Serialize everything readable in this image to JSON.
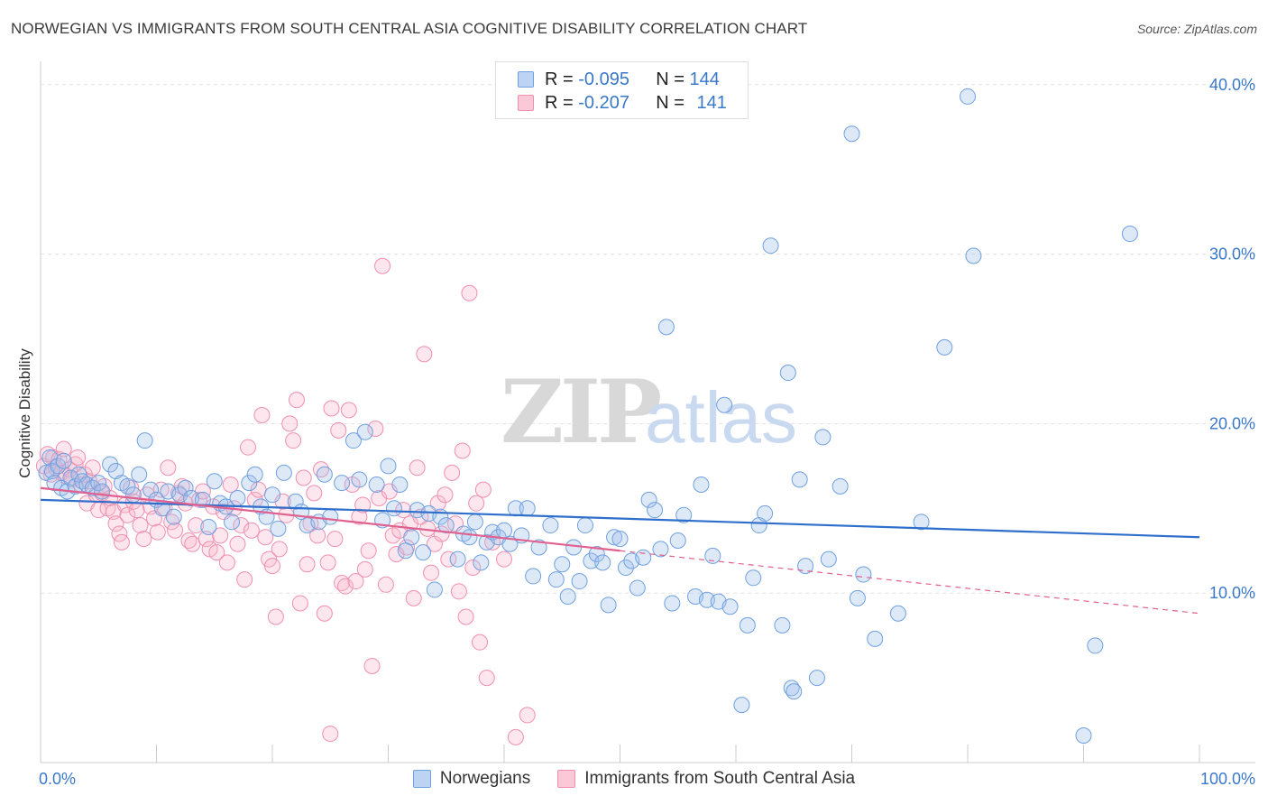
{
  "title": "NORWEGIAN VS IMMIGRANTS FROM SOUTH CENTRAL ASIA COGNITIVE DISABILITY CORRELATION CHART",
  "source": "Source: ZipAtlas.com",
  "watermark": {
    "zip": "ZIP",
    "atlas": "atlas"
  },
  "legend": {
    "rows": [
      {
        "r_label": "R =",
        "r_value": "-0.095",
        "n_label": "N =",
        "n_value": "144",
        "color": "#6fa0e0"
      },
      {
        "r_label": "R =",
        "r_value": "-0.207",
        "n_label": "N =",
        "n_value": "141",
        "color": "#f08fb0"
      }
    ]
  },
  "bottom_legend": [
    "Norwegians",
    "Immigrants from South Central Asia"
  ],
  "chart_data": {
    "type": "scatter",
    "title": "NORWEGIAN VS IMMIGRANTS FROM SOUTH CENTRAL ASIA COGNITIVE DISABILITY CORRELATION CHART",
    "ylabel": "Cognitive Disability",
    "xlabel": "",
    "xlim": [
      0,
      100
    ],
    "ylim": [
      0,
      41
    ],
    "x_tick_labels": [
      "0.0%",
      "100.0%"
    ],
    "y_ticks": [
      10,
      20,
      30,
      40
    ],
    "y_tick_labels": [
      "10.0%",
      "20.0%",
      "30.0%",
      "40.0%"
    ],
    "grid": true,
    "legend_position": "top-center",
    "colors": {
      "norwegians": "#6fa0e0",
      "immigrants": "#f08fb0",
      "norwegians_line": "#2f6fcc",
      "immigrants_line": "#e0608f"
    },
    "series": [
      {
        "name": "Norwegians",
        "r": -0.095,
        "n": 144,
        "trend": {
          "x": [
            0,
            100
          ],
          "y": [
            15.5,
            13.3
          ]
        },
        "points": [
          [
            0.5,
            17.1
          ],
          [
            0.8,
            18.0
          ],
          [
            1.0,
            17.2
          ],
          [
            1.2,
            16.5
          ],
          [
            1.5,
            17.5
          ],
          [
            1.8,
            16.2
          ],
          [
            2.0,
            17.8
          ],
          [
            2.3,
            16.0
          ],
          [
            2.6,
            16.8
          ],
          [
            3.0,
            16.3
          ],
          [
            3.3,
            17.0
          ],
          [
            3.6,
            16.6
          ],
          [
            4.0,
            16.4
          ],
          [
            4.5,
            16.2
          ],
          [
            5.0,
            16.5
          ],
          [
            5.3,
            16.0
          ],
          [
            6.0,
            17.6
          ],
          [
            6.5,
            17.2
          ],
          [
            7.0,
            16.5
          ],
          [
            7.5,
            16.3
          ],
          [
            8.0,
            15.8
          ],
          [
            8.5,
            17.0
          ],
          [
            9.0,
            19.0
          ],
          [
            9.5,
            16.1
          ],
          [
            10.0,
            15.5
          ],
          [
            10.5,
            15.0
          ],
          [
            11.0,
            16.0
          ],
          [
            11.5,
            14.5
          ],
          [
            12.0,
            15.8
          ],
          [
            12.5,
            16.2
          ],
          [
            13.0,
            15.6
          ],
          [
            14.0,
            15.5
          ],
          [
            14.5,
            13.9
          ],
          [
            15.0,
            16.6
          ],
          [
            15.5,
            15.3
          ],
          [
            16.0,
            15.1
          ],
          [
            16.5,
            14.2
          ],
          [
            17.0,
            15.6
          ],
          [
            18.0,
            16.5
          ],
          [
            18.5,
            17.0
          ],
          [
            19.0,
            15.1
          ],
          [
            19.5,
            14.5
          ],
          [
            20.0,
            15.8
          ],
          [
            20.5,
            13.8
          ],
          [
            21.0,
            17.1
          ],
          [
            22.0,
            15.4
          ],
          [
            22.5,
            14.8
          ],
          [
            23.0,
            14.0
          ],
          [
            24.0,
            14.2
          ],
          [
            24.5,
            17.0
          ],
          [
            25.0,
            14.5
          ],
          [
            26.0,
            16.5
          ],
          [
            27.0,
            19.0
          ],
          [
            27.5,
            16.7
          ],
          [
            28.0,
            19.5
          ],
          [
            29.0,
            16.4
          ],
          [
            29.5,
            14.3
          ],
          [
            30.0,
            17.5
          ],
          [
            30.5,
            15.0
          ],
          [
            31.0,
            16.4
          ],
          [
            31.5,
            12.5
          ],
          [
            32.0,
            13.3
          ],
          [
            32.5,
            14.9
          ],
          [
            33.0,
            12.4
          ],
          [
            33.5,
            14.7
          ],
          [
            34.0,
            10.2
          ],
          [
            34.5,
            14.5
          ],
          [
            35.0,
            14.0
          ],
          [
            36.0,
            12.0
          ],
          [
            36.5,
            13.5
          ],
          [
            37.0,
            13.3
          ],
          [
            37.5,
            14.2
          ],
          [
            38.0,
            11.8
          ],
          [
            38.5,
            13.0
          ],
          [
            39.0,
            13.6
          ],
          [
            39.5,
            13.3
          ],
          [
            40.0,
            13.7
          ],
          [
            40.5,
            12.9
          ],
          [
            41.0,
            15.0
          ],
          [
            41.5,
            13.4
          ],
          [
            42.0,
            15.0
          ],
          [
            42.5,
            11.0
          ],
          [
            43.0,
            12.7
          ],
          [
            44.0,
            14.0
          ],
          [
            44.5,
            10.8
          ],
          [
            45.0,
            11.7
          ],
          [
            45.5,
            9.8
          ],
          [
            46.0,
            12.7
          ],
          [
            46.5,
            10.7
          ],
          [
            47.0,
            14.0
          ],
          [
            47.5,
            11.9
          ],
          [
            48.0,
            12.3
          ],
          [
            48.5,
            11.8
          ],
          [
            49.0,
            9.3
          ],
          [
            49.5,
            13.3
          ],
          [
            50.0,
            13.2
          ],
          [
            50.5,
            11.5
          ],
          [
            51.0,
            11.9
          ],
          [
            51.5,
            10.3
          ],
          [
            52.0,
            12.1
          ],
          [
            52.5,
            15.5
          ],
          [
            53.0,
            14.9
          ],
          [
            53.5,
            12.6
          ],
          [
            54.0,
            25.7
          ],
          [
            54.5,
            9.4
          ],
          [
            55.0,
            13.1
          ],
          [
            55.5,
            14.6
          ],
          [
            56.5,
            9.8
          ],
          [
            57.0,
            16.4
          ],
          [
            57.5,
            9.6
          ],
          [
            58.0,
            12.2
          ],
          [
            58.5,
            9.5
          ],
          [
            59.0,
            21.1
          ],
          [
            59.5,
            9.2
          ],
          [
            60.5,
            3.4
          ],
          [
            61.0,
            8.1
          ],
          [
            61.5,
            10.9
          ],
          [
            62.0,
            14.0
          ],
          [
            62.5,
            14.7
          ],
          [
            63.0,
            30.5
          ],
          [
            64.0,
            8.1
          ],
          [
            64.5,
            23.0
          ],
          [
            64.8,
            4.4
          ],
          [
            65.0,
            4.2
          ],
          [
            65.5,
            16.7
          ],
          [
            66.0,
            11.6
          ],
          [
            67.0,
            5.0
          ],
          [
            67.5,
            19.2
          ],
          [
            68.0,
            12.0
          ],
          [
            69.0,
            16.3
          ],
          [
            70.0,
            37.1
          ],
          [
            70.5,
            9.7
          ],
          [
            71.0,
            11.1
          ],
          [
            72.0,
            7.3
          ],
          [
            74.0,
            8.8
          ],
          [
            76.0,
            14.2
          ],
          [
            78.0,
            24.5
          ],
          [
            80.0,
            39.3
          ],
          [
            80.5,
            29.9
          ],
          [
            90.0,
            1.6
          ],
          [
            91.0,
            6.9
          ],
          [
            94.0,
            31.2
          ]
        ]
      },
      {
        "name": "Immigrants from South Central Asia",
        "r": -0.207,
        "n": 141,
        "trend": {
          "x": [
            0,
            50
          ],
          "y": [
            16.2,
            12.5
          ]
        },
        "trend_dashed": {
          "x": [
            50,
            100
          ],
          "y": [
            12.5,
            8.8
          ]
        },
        "points": [
          [
            0.3,
            17.5
          ],
          [
            0.6,
            18.2
          ],
          [
            0.9,
            17.0
          ],
          [
            1.1,
            18.0
          ],
          [
            1.3,
            17.4
          ],
          [
            1.6,
            17.9
          ],
          [
            1.8,
            17.1
          ],
          [
            2.0,
            18.5
          ],
          [
            2.2,
            16.9
          ],
          [
            2.5,
            17.3
          ],
          [
            2.7,
            16.7
          ],
          [
            3.0,
            17.6
          ],
          [
            3.2,
            18.0
          ],
          [
            3.5,
            16.4
          ],
          [
            3.8,
            17.0
          ],
          [
            4.0,
            15.3
          ],
          [
            4.2,
            16.6
          ],
          [
            4.5,
            17.4
          ],
          [
            4.8,
            15.8
          ],
          [
            5.0,
            14.9
          ],
          [
            5.3,
            15.9
          ],
          [
            5.5,
            16.3
          ],
          [
            5.8,
            15.0
          ],
          [
            6.0,
            15.6
          ],
          [
            6.3,
            14.8
          ],
          [
            6.5,
            14.1
          ],
          [
            6.8,
            13.5
          ],
          [
            7.0,
            13.0
          ],
          [
            7.3,
            15.2
          ],
          [
            7.5,
            14.6
          ],
          [
            7.8,
            16.2
          ],
          [
            8.0,
            15.4
          ],
          [
            8.3,
            14.9
          ],
          [
            8.6,
            14.0
          ],
          [
            8.9,
            13.2
          ],
          [
            9.2,
            15.8
          ],
          [
            9.5,
            15.1
          ],
          [
            9.8,
            14.4
          ],
          [
            10.1,
            13.6
          ],
          [
            10.4,
            16.1
          ],
          [
            10.7,
            15.0
          ],
          [
            11.0,
            17.4
          ],
          [
            11.3,
            14.2
          ],
          [
            11.6,
            13.7
          ],
          [
            11.9,
            15.9
          ],
          [
            12.2,
            16.3
          ],
          [
            12.5,
            15.3
          ],
          [
            12.8,
            13.1
          ],
          [
            13.1,
            12.9
          ],
          [
            13.4,
            14.0
          ],
          [
            13.7,
            15.5
          ],
          [
            14.0,
            16.0
          ],
          [
            14.3,
            13.2
          ],
          [
            14.6,
            12.6
          ],
          [
            14.9,
            15.1
          ],
          [
            15.2,
            12.4
          ],
          [
            15.5,
            13.4
          ],
          [
            15.8,
            14.8
          ],
          [
            16.1,
            11.8
          ],
          [
            16.4,
            16.4
          ],
          [
            16.7,
            15.0
          ],
          [
            17.0,
            12.9
          ],
          [
            17.3,
            14.0
          ],
          [
            17.6,
            10.8
          ],
          [
            17.9,
            18.6
          ],
          [
            18.2,
            13.7
          ],
          [
            18.5,
            15.5
          ],
          [
            18.8,
            16.1
          ],
          [
            19.1,
            20.5
          ],
          [
            19.4,
            13.3
          ],
          [
            19.7,
            12.0
          ],
          [
            20.0,
            11.6
          ],
          [
            20.3,
            8.6
          ],
          [
            20.6,
            12.6
          ],
          [
            20.9,
            15.4
          ],
          [
            21.2,
            14.6
          ],
          [
            21.5,
            20.0
          ],
          [
            21.8,
            19.0
          ],
          [
            22.1,
            21.4
          ],
          [
            22.4,
            9.4
          ],
          [
            22.7,
            16.8
          ],
          [
            23.0,
            11.7
          ],
          [
            23.3,
            14.1
          ],
          [
            23.6,
            15.9
          ],
          [
            23.9,
            13.4
          ],
          [
            24.2,
            17.3
          ],
          [
            24.5,
            8.8
          ],
          [
            24.8,
            11.8
          ],
          [
            25.1,
            20.9
          ],
          [
            25.4,
            13.2
          ],
          [
            25.7,
            19.6
          ],
          [
            26.0,
            10.6
          ],
          [
            26.3,
            10.4
          ],
          [
            26.6,
            20.8
          ],
          [
            26.9,
            16.4
          ],
          [
            27.2,
            10.7
          ],
          [
            27.5,
            14.5
          ],
          [
            27.8,
            15.2
          ],
          [
            28.0,
            11.4
          ],
          [
            28.3,
            12.5
          ],
          [
            28.6,
            5.7
          ],
          [
            28.9,
            19.7
          ],
          [
            29.2,
            15.6
          ],
          [
            29.5,
            29.3
          ],
          [
            29.8,
            10.5
          ],
          [
            30.1,
            16.0
          ],
          [
            30.4,
            13.4
          ],
          [
            30.7,
            12.3
          ],
          [
            31.0,
            13.7
          ],
          [
            31.3,
            14.9
          ],
          [
            31.6,
            12.7
          ],
          [
            31.9,
            14.1
          ],
          [
            32.2,
            9.7
          ],
          [
            32.5,
            17.4
          ],
          [
            32.8,
            14.5
          ],
          [
            33.1,
            24.1
          ],
          [
            33.4,
            13.8
          ],
          [
            33.7,
            11.2
          ],
          [
            34.0,
            12.9
          ],
          [
            34.3,
            15.3
          ],
          [
            34.6,
            13.5
          ],
          [
            34.9,
            15.8
          ],
          [
            35.2,
            12.0
          ],
          [
            35.5,
            17.1
          ],
          [
            35.8,
            14.1
          ],
          [
            36.1,
            10.1
          ],
          [
            36.4,
            18.4
          ],
          [
            36.7,
            8.6
          ],
          [
            37.0,
            27.7
          ],
          [
            37.3,
            11.5
          ],
          [
            37.6,
            15.3
          ],
          [
            37.9,
            7.1
          ],
          [
            38.2,
            16.1
          ],
          [
            38.5,
            5.0
          ],
          [
            39.0,
            13.0
          ],
          [
            40.0,
            12.0
          ],
          [
            41.0,
            1.5
          ],
          [
            42.0,
            2.8
          ],
          [
            25.0,
            1.7
          ]
        ]
      }
    ]
  }
}
